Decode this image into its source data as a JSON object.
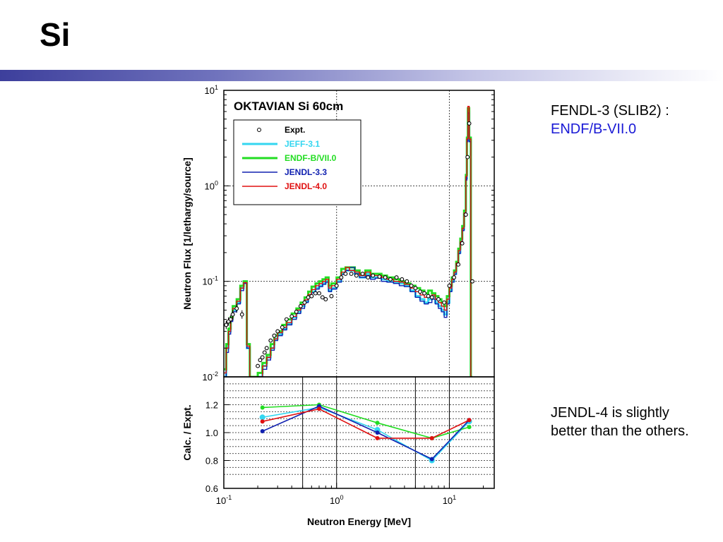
{
  "slide": {
    "title": "Si",
    "note_top_line1": "FENDL-3 (SLIB2) :",
    "note_top_line2": "ENDF/B-VII.0",
    "note_bottom": "JENDL-4 is slightly better than the others."
  },
  "colors": {
    "expt": "#000000",
    "jeff": "#33d6f0",
    "endf": "#22dd22",
    "jendl33": "#1020b0",
    "jendl40": "#e01010"
  },
  "chart_data": [
    {
      "type": "line",
      "title": "OKTAVIAN Si 60cm",
      "ylabel": "Neutron Flux [1/lethargy/source]",
      "xlabel": "",
      "x_scale": "log",
      "y_scale": "log",
      "xlim": [
        0.1,
        25
      ],
      "ylim": [
        0.01,
        10
      ],
      "y_ticks": [
        {
          "base": "10",
          "exp": "1",
          "value": 10
        },
        {
          "base": "10",
          "exp": "0",
          "value": 1
        },
        {
          "base": "10",
          "exp": "-1",
          "value": 0.1
        },
        {
          "base": "10",
          "exp": "-2",
          "value": 0.01
        }
      ],
      "grid": "dotted at decades",
      "legend_position": "top-left",
      "legend": [
        "Expt.",
        "JEFF-3.1",
        "ENDF-B/VII.0",
        "JENDL-3.3",
        "JENDL-4.0"
      ],
      "series": [
        {
          "name": "Expt.",
          "marker": "open-circle",
          "x": [
            0.105,
            0.11,
            0.115,
            0.12,
            0.13,
            0.145,
            0.2,
            0.21,
            0.22,
            0.23,
            0.24,
            0.26,
            0.28,
            0.3,
            0.33,
            0.36,
            0.4,
            0.44,
            0.48,
            0.52,
            0.56,
            0.6,
            0.65,
            0.7,
            0.75,
            0.8,
            0.9,
            1.0,
            1.1,
            1.2,
            1.35,
            1.5,
            1.7,
            1.9,
            2.1,
            2.4,
            2.7,
            3.0,
            3.4,
            3.8,
            4.2,
            4.6,
            5.0,
            5.5,
            6.0,
            6.5,
            7.0,
            8.0,
            9.0,
            10.0,
            11.0,
            12.0,
            13.0,
            14.0,
            14.5,
            15.0,
            16.0
          ],
          "y": [
            0.035,
            0.038,
            0.04,
            0.045,
            0.052,
            0.045,
            0.013,
            0.015,
            0.016,
            0.018,
            0.02,
            0.024,
            0.027,
            0.03,
            0.033,
            0.04,
            0.043,
            0.048,
            0.055,
            0.06,
            0.068,
            0.07,
            0.075,
            0.075,
            0.068,
            0.065,
            0.07,
            0.09,
            0.11,
            0.12,
            0.12,
            0.115,
            0.12,
            0.11,
            0.115,
            0.112,
            0.11,
            0.105,
            0.11,
            0.105,
            0.1,
            0.09,
            0.085,
            0.078,
            0.075,
            0.07,
            0.068,
            0.065,
            0.06,
            0.09,
            0.11,
            0.15,
            0.25,
            0.5,
            2.0,
            4.5,
            0.1
          ]
        },
        {
          "name": "JEFF-3.1",
          "x": [
            0.1,
            0.105,
            0.11,
            0.115,
            0.12,
            0.13,
            0.14,
            0.15,
            0.16,
            0.17,
            0.18,
            0.2,
            0.22,
            0.24,
            0.26,
            0.28,
            0.3,
            0.33,
            0.36,
            0.4,
            0.44,
            0.48,
            0.52,
            0.56,
            0.6,
            0.65,
            0.7,
            0.75,
            0.8,
            0.85,
            0.9,
            1.0,
            1.1,
            1.2,
            1.3,
            1.45,
            1.6,
            1.8,
            2.0,
            2.2,
            2.5,
            2.8,
            3.2,
            3.6,
            4.0,
            4.5,
            5.0,
            5.5,
            6.0,
            6.5,
            7.0,
            7.5,
            8.0,
            8.5,
            9.0,
            9.5,
            10.0,
            10.5,
            11.0,
            11.5,
            12.0,
            12.5,
            13.0,
            13.5,
            14.0,
            14.3,
            14.6,
            15.0,
            15.5,
            16.0
          ],
          "y": [
            0.01,
            0.02,
            0.03,
            0.04,
            0.05,
            0.06,
            0.085,
            0.1,
            0.02,
            0.01,
            0.01,
            0.01,
            0.013,
            0.016,
            0.02,
            0.025,
            0.028,
            0.032,
            0.036,
            0.042,
            0.048,
            0.055,
            0.062,
            0.07,
            0.078,
            0.085,
            0.09,
            0.095,
            0.1,
            0.08,
            0.085,
            0.1,
            0.12,
            0.13,
            0.13,
            0.12,
            0.11,
            0.12,
            0.11,
            0.11,
            0.105,
            0.1,
            0.098,
            0.095,
            0.09,
            0.08,
            0.07,
            0.065,
            0.06,
            0.065,
            0.07,
            0.06,
            0.055,
            0.05,
            0.045,
            0.06,
            0.08,
            0.1,
            0.12,
            0.15,
            0.2,
            0.25,
            0.35,
            0.5,
            1.2,
            3.0,
            6.0,
            3.0,
            0.01,
            0.01
          ]
        },
        {
          "name": "ENDF-B/VII.0",
          "x": [
            0.1,
            0.105,
            0.11,
            0.115,
            0.12,
            0.13,
            0.14,
            0.15,
            0.16,
            0.17,
            0.18,
            0.2,
            0.22,
            0.24,
            0.26,
            0.28,
            0.3,
            0.33,
            0.36,
            0.4,
            0.44,
            0.48,
            0.52,
            0.56,
            0.6,
            0.65,
            0.7,
            0.75,
            0.8,
            0.85,
            0.9,
            1.0,
            1.1,
            1.2,
            1.3,
            1.45,
            1.6,
            1.8,
            2.0,
            2.2,
            2.5,
            2.8,
            3.2,
            3.6,
            4.0,
            4.5,
            5.0,
            5.5,
            6.0,
            6.5,
            7.0,
            7.5,
            8.0,
            8.5,
            9.0,
            9.5,
            10.0,
            10.5,
            11.0,
            11.5,
            12.0,
            12.5,
            13.0,
            13.5,
            14.0,
            14.3,
            14.6,
            15.0,
            15.5,
            16.0
          ],
          "y": [
            0.012,
            0.022,
            0.032,
            0.042,
            0.055,
            0.065,
            0.09,
            0.1,
            0.022,
            0.01,
            0.01,
            0.011,
            0.014,
            0.017,
            0.022,
            0.027,
            0.03,
            0.035,
            0.04,
            0.046,
            0.052,
            0.06,
            0.068,
            0.078,
            0.088,
            0.095,
            0.1,
            0.105,
            0.11,
            0.09,
            0.095,
            0.11,
            0.135,
            0.14,
            0.14,
            0.13,
            0.12,
            0.13,
            0.12,
            0.12,
            0.115,
            0.11,
            0.105,
            0.1,
            0.095,
            0.09,
            0.085,
            0.08,
            0.075,
            0.08,
            0.075,
            0.07,
            0.065,
            0.06,
            0.055,
            0.07,
            0.09,
            0.11,
            0.13,
            0.16,
            0.22,
            0.28,
            0.38,
            0.55,
            1.3,
            3.2,
            6.5,
            3.2,
            0.01,
            0.01
          ]
        },
        {
          "name": "JENDL-3.3",
          "x": [
            0.1,
            0.105,
            0.11,
            0.115,
            0.12,
            0.13,
            0.14,
            0.15,
            0.16,
            0.17,
            0.18,
            0.2,
            0.22,
            0.24,
            0.26,
            0.28,
            0.3,
            0.33,
            0.36,
            0.4,
            0.44,
            0.48,
            0.52,
            0.56,
            0.6,
            0.65,
            0.7,
            0.75,
            0.8,
            0.85,
            0.9,
            1.0,
            1.1,
            1.2,
            1.3,
            1.45,
            1.6,
            1.8,
            2.0,
            2.2,
            2.5,
            2.8,
            3.2,
            3.6,
            4.0,
            4.5,
            5.0,
            5.5,
            6.0,
            6.5,
            7.0,
            7.5,
            8.0,
            8.5,
            9.0,
            9.5,
            10.0,
            10.5,
            11.0,
            11.5,
            12.0,
            12.5,
            13.0,
            13.5,
            14.0,
            14.3,
            14.6,
            15.0,
            15.5,
            16.0
          ],
          "y": [
            0.01,
            0.018,
            0.028,
            0.038,
            0.048,
            0.058,
            0.08,
            0.095,
            0.02,
            0.01,
            0.01,
            0.01,
            0.012,
            0.015,
            0.019,
            0.024,
            0.027,
            0.031,
            0.035,
            0.04,
            0.046,
            0.052,
            0.06,
            0.068,
            0.076,
            0.083,
            0.088,
            0.093,
            0.098,
            0.078,
            0.083,
            0.098,
            0.118,
            0.13,
            0.14,
            0.12,
            0.11,
            0.115,
            0.105,
            0.108,
            0.1,
            0.098,
            0.095,
            0.09,
            0.088,
            0.078,
            0.068,
            0.062,
            0.058,
            0.06,
            0.065,
            0.058,
            0.052,
            0.048,
            0.042,
            0.058,
            0.078,
            0.098,
            0.118,
            0.148,
            0.195,
            0.245,
            0.34,
            0.48,
            1.15,
            2.9,
            5.8,
            2.9,
            0.01,
            0.01
          ]
        },
        {
          "name": "JENDL-4.0",
          "x": [
            0.1,
            0.105,
            0.11,
            0.115,
            0.12,
            0.13,
            0.14,
            0.15,
            0.16,
            0.17,
            0.18,
            0.2,
            0.22,
            0.24,
            0.26,
            0.28,
            0.3,
            0.33,
            0.36,
            0.4,
            0.44,
            0.48,
            0.52,
            0.56,
            0.6,
            0.65,
            0.7,
            0.75,
            0.8,
            0.85,
            0.9,
            1.0,
            1.1,
            1.2,
            1.3,
            1.45,
            1.6,
            1.8,
            2.0,
            2.2,
            2.5,
            2.8,
            3.2,
            3.6,
            4.0,
            4.5,
            5.0,
            5.5,
            6.0,
            6.5,
            7.0,
            7.5,
            8.0,
            8.5,
            9.0,
            9.5,
            10.0,
            10.5,
            11.0,
            11.5,
            12.0,
            12.5,
            13.0,
            13.5,
            14.0,
            14.3,
            14.6,
            15.0,
            15.5,
            16.0
          ],
          "y": [
            0.011,
            0.02,
            0.03,
            0.04,
            0.052,
            0.062,
            0.085,
            0.097,
            0.021,
            0.01,
            0.01,
            0.01,
            0.013,
            0.016,
            0.02,
            0.025,
            0.029,
            0.033,
            0.037,
            0.043,
            0.05,
            0.057,
            0.064,
            0.073,
            0.082,
            0.09,
            0.095,
            0.1,
            0.105,
            0.085,
            0.09,
            0.105,
            0.125,
            0.14,
            0.13,
            0.125,
            0.115,
            0.125,
            0.115,
            0.115,
            0.11,
            0.105,
            0.1,
            0.098,
            0.093,
            0.085,
            0.078,
            0.072,
            0.068,
            0.07,
            0.072,
            0.065,
            0.06,
            0.055,
            0.05,
            0.065,
            0.085,
            0.105,
            0.125,
            0.155,
            0.21,
            0.26,
            0.36,
            0.52,
            1.25,
            3.1,
            6.8,
            3.1,
            0.01,
            0.01
          ]
        }
      ]
    },
    {
      "type": "line",
      "title": "",
      "xlabel": "Neutron Energy [MeV]",
      "ylabel": "Calc. / Expt.",
      "x_scale": "log",
      "xlim": [
        0.1,
        25
      ],
      "ylim": [
        0.6,
        1.4
      ],
      "y_tick_labels": [
        "0.6",
        "0.8",
        "1.0",
        "1.2"
      ],
      "y_tick_values": [
        0.6,
        0.8,
        1.0,
        1.2
      ],
      "x_ticks": [
        {
          "base": "10",
          "exp": "-1",
          "value": 0.1
        },
        {
          "base": "10",
          "exp": "0",
          "value": 1
        },
        {
          "base": "10",
          "exp": "1",
          "value": 10
        }
      ],
      "grid": "dotted",
      "series": [
        {
          "name": "JEFF-3.1",
          "x": [
            0.22,
            0.7,
            2.3,
            7.0,
            15.0
          ],
          "y": [
            1.11,
            1.18,
            1.02,
            0.8,
            1.08
          ]
        },
        {
          "name": "ENDF-B/VII.0",
          "x": [
            0.22,
            0.7,
            2.3,
            7.0,
            15.0
          ],
          "y": [
            1.18,
            1.2,
            1.07,
            0.96,
            1.04
          ]
        },
        {
          "name": "JENDL-3.3",
          "x": [
            0.22,
            0.7,
            2.3,
            7.0,
            15.0
          ],
          "y": [
            1.01,
            1.19,
            1.0,
            0.81,
            1.09
          ]
        },
        {
          "name": "JENDL-4.0",
          "x": [
            0.22,
            0.7,
            2.3,
            7.0,
            15.0
          ],
          "y": [
            1.08,
            1.17,
            0.96,
            0.96,
            1.09
          ]
        }
      ]
    }
  ]
}
